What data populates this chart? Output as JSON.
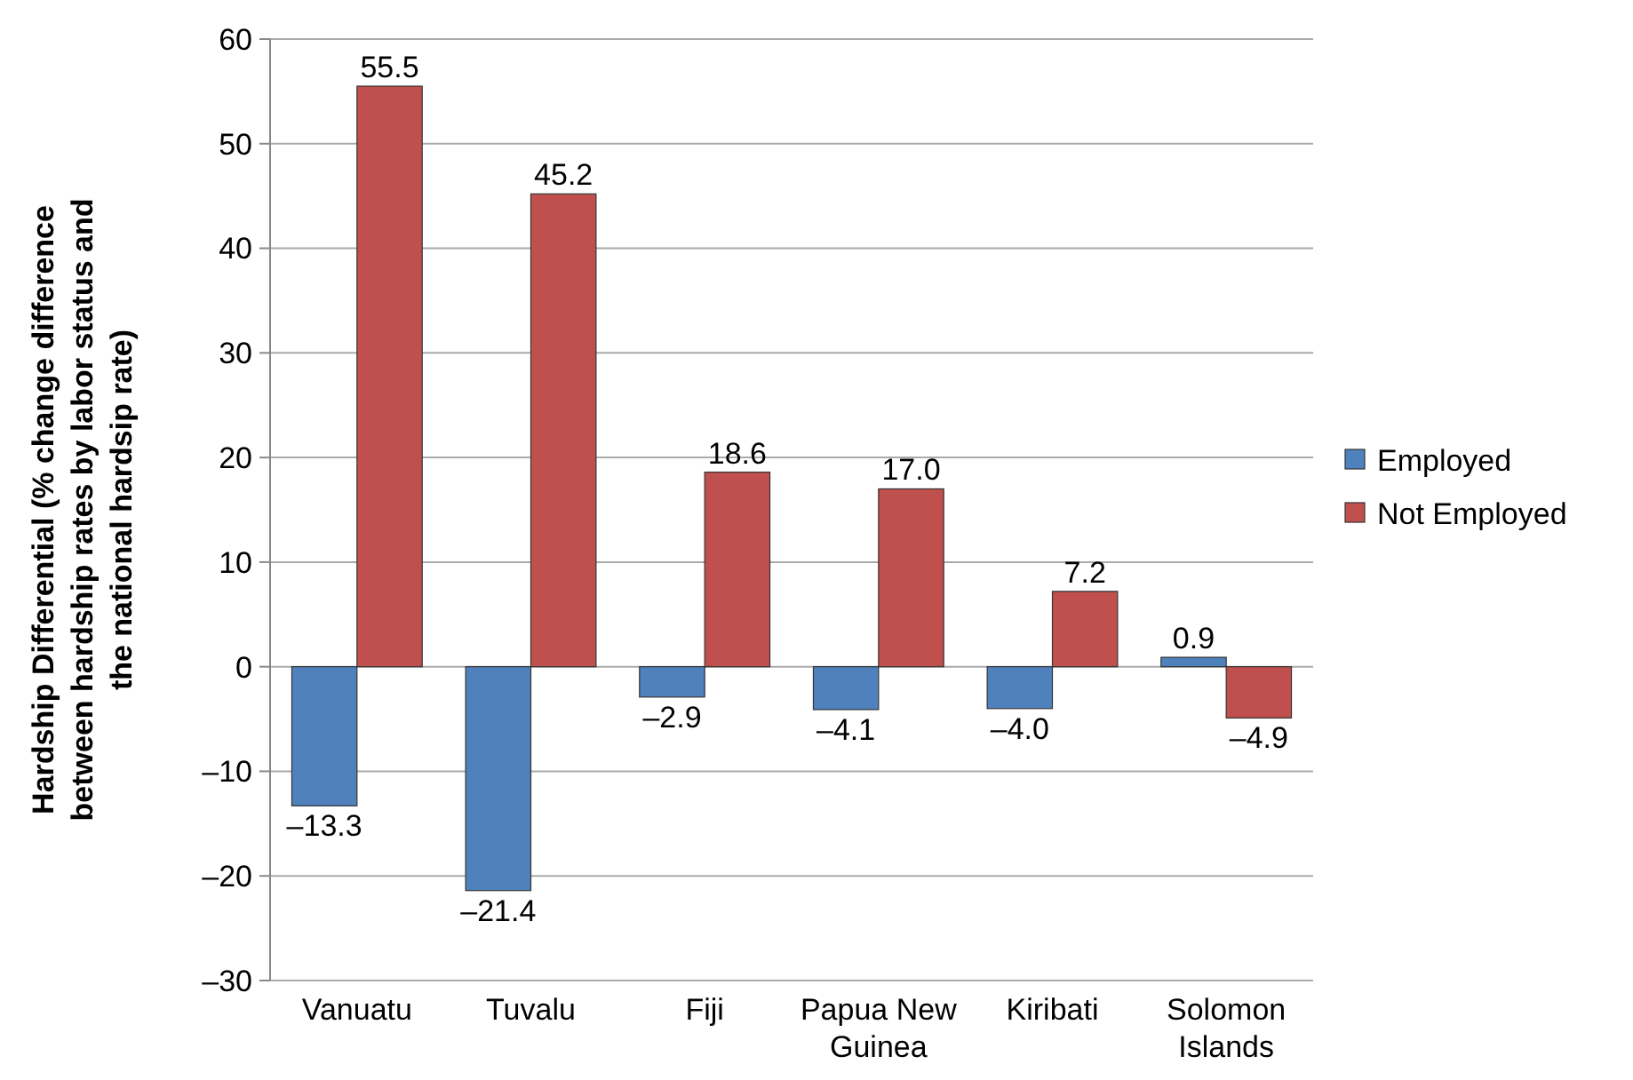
{
  "chart_data": {
    "type": "bar",
    "ylabel": "Hardship Differential (% change difference between hardship rates by labor status and the national hardsip rate)",
    "categories": [
      "Vanuatu",
      "Tuvalu",
      "Fiji",
      "Papua New Guinea",
      "Kiribati",
      "Solomon Islands"
    ],
    "series": [
      {
        "name": "Employed",
        "color": "#4f81bd",
        "values": [
          -13.3,
          -21.4,
          -2.9,
          -4.1,
          -4.0,
          0.9
        ],
        "value_labels": [
          "–13.3",
          "–21.4",
          "–2.9",
          "–4.1",
          "–4.0",
          "0.9"
        ]
      },
      {
        "name": "Not Employed",
        "color": "#c0504d",
        "values": [
          55.5,
          45.2,
          18.6,
          17.0,
          7.2,
          -4.9
        ],
        "value_labels": [
          "55.5",
          "45.2",
          "18.6",
          "17.0",
          "7.2",
          "–4.9"
        ]
      }
    ],
    "ylim": [
      -30,
      60
    ],
    "yticks": [
      {
        "value": -30,
        "label": "–30"
      },
      {
        "value": -20,
        "label": "–20"
      },
      {
        "value": -10,
        "label": "–10"
      },
      0,
      10,
      20,
      30,
      40,
      50,
      60
    ],
    "grid": "y",
    "legend": "right"
  }
}
